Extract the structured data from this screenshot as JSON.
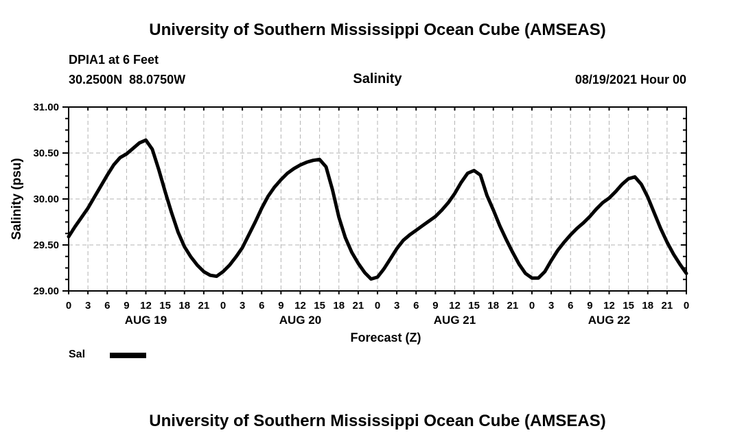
{
  "header": {
    "title": "University of Southern Mississippi Ocean Cube (AMSEAS)",
    "station": "DPIA1 at 6 Feet",
    "coordinates": "30.2500N  88.0750W",
    "plot_title": "Salinity",
    "run_time": "08/19/2021 Hour 00"
  },
  "legend": {
    "label": "Sal"
  },
  "footer": {
    "title": "University of Southern Mississippi Ocean Cube (AMSEAS)"
  },
  "colors": {
    "line": "#000000",
    "grid": "#b3b3b3",
    "text": "#000000",
    "background": "#ffffff"
  },
  "chart_data": {
    "type": "line",
    "title": "Salinity",
    "xlabel": "Forecast (Z)",
    "ylabel": "Salinity (psu)",
    "ylim": [
      29.0,
      31.0
    ],
    "x_range": [
      0,
      96
    ],
    "x_tick_step": 3,
    "x_tick_labels": [
      "0",
      "3",
      "6",
      "9",
      "12",
      "15",
      "18",
      "21",
      "0",
      "3",
      "6",
      "9",
      "12",
      "15",
      "18",
      "21",
      "0",
      "3",
      "6",
      "9",
      "12",
      "15",
      "18",
      "21",
      "0",
      "3",
      "6",
      "9",
      "12",
      "15",
      "18",
      "21",
      "0"
    ],
    "day_labels": [
      {
        "label": "AUG 19",
        "center_hour": 12
      },
      {
        "label": "AUG 20",
        "center_hour": 36
      },
      {
        "label": "AUG 21",
        "center_hour": 60
      },
      {
        "label": "AUG 22",
        "center_hour": 84
      }
    ],
    "y_ticks": [
      {
        "value": 29.0,
        "label": "29.00"
      },
      {
        "value": 29.5,
        "label": "29.50"
      },
      {
        "value": 30.0,
        "label": "30.00"
      },
      {
        "value": 30.5,
        "label": "30.50"
      },
      {
        "value": 31.0,
        "label": "31.00"
      }
    ],
    "y_minor_step": 0.125,
    "grid": true,
    "grid_y_values": [
      29.5,
      30.0,
      30.5
    ],
    "legend_position": "bottom-left",
    "series": [
      {
        "name": "Sal",
        "color": "#000000",
        "x_hours": [
          0,
          1,
          2,
          3,
          4,
          5,
          6,
          7,
          8,
          9,
          10,
          11,
          12,
          13,
          14,
          15,
          16,
          17,
          18,
          19,
          20,
          21,
          22,
          23,
          24,
          25,
          26,
          27,
          28,
          29,
          30,
          31,
          32,
          33,
          34,
          35,
          36,
          37,
          38,
          39,
          40,
          41,
          42,
          43,
          44,
          45,
          46,
          47,
          48,
          49,
          50,
          51,
          52,
          53,
          54,
          55,
          56,
          57,
          58,
          59,
          60,
          61,
          62,
          63,
          64,
          65,
          66,
          67,
          68,
          69,
          70,
          71,
          72,
          73,
          74,
          75,
          76,
          77,
          78,
          79,
          80,
          81,
          82,
          83,
          84,
          85,
          86,
          87,
          88,
          89,
          90,
          91,
          92,
          93,
          94,
          95,
          96
        ],
        "values": [
          29.59,
          29.7,
          29.8,
          29.9,
          30.02,
          30.14,
          30.26,
          30.37,
          30.45,
          30.49,
          30.55,
          30.61,
          30.64,
          30.54,
          30.32,
          30.08,
          29.85,
          29.64,
          29.48,
          29.37,
          29.28,
          29.21,
          29.17,
          29.16,
          29.21,
          29.28,
          29.37,
          29.47,
          29.61,
          29.75,
          29.9,
          30.03,
          30.13,
          30.21,
          30.28,
          30.33,
          30.37,
          30.4,
          30.42,
          30.43,
          30.35,
          30.1,
          29.8,
          29.58,
          29.42,
          29.3,
          29.2,
          29.13,
          29.15,
          29.24,
          29.35,
          29.46,
          29.55,
          29.61,
          29.66,
          29.71,
          29.76,
          29.81,
          29.88,
          29.96,
          30.06,
          30.18,
          30.28,
          30.31,
          30.26,
          30.04,
          29.88,
          29.71,
          29.56,
          29.42,
          29.29,
          29.19,
          29.14,
          29.14,
          29.21,
          29.33,
          29.44,
          29.53,
          29.61,
          29.68,
          29.74,
          29.81,
          29.89,
          29.96,
          30.01,
          30.08,
          30.16,
          30.22,
          30.24,
          30.16,
          30.02,
          29.85,
          29.68,
          29.53,
          29.4,
          29.29,
          29.19
        ]
      }
    ]
  }
}
